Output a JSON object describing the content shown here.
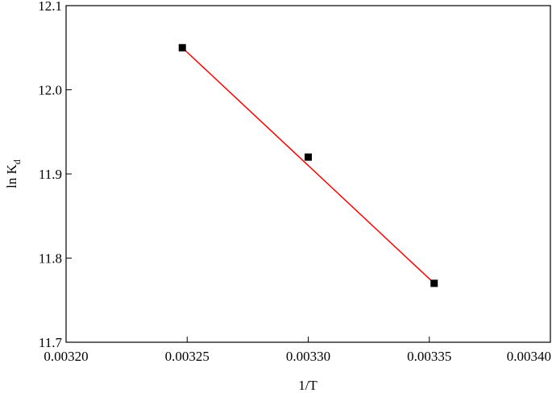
{
  "chart_data": {
    "type": "scatter",
    "xlabel": "1/T",
    "ylabel": "ln K",
    "ylabel_sub": "d",
    "x": [
      0.003248,
      0.0033,
      0.003352
    ],
    "values": [
      12.05,
      11.92,
      11.77
    ],
    "color": "#000000",
    "fit_line": {
      "x": [
        0.003248,
        0.003352
      ],
      "values": [
        12.05,
        11.77
      ],
      "color": "#ff0000"
    },
    "xlim": [
      0.0032,
      0.0034
    ],
    "xticks": [
      {
        "value": 0.0032,
        "label": "0.00320"
      },
      {
        "value": 0.00325,
        "label": "0.00325"
      },
      {
        "value": 0.0033,
        "label": "0.00330"
      },
      {
        "value": 0.00335,
        "label": "0.00335"
      },
      {
        "value": 0.0034,
        "label": "0.00340"
      }
    ],
    "ylim": [
      11.7,
      12.1
    ],
    "yticks": [
      11.7,
      11.8,
      11.9,
      {
        "value": 12,
        "label": "12.0"
      },
      12.1
    ]
  }
}
